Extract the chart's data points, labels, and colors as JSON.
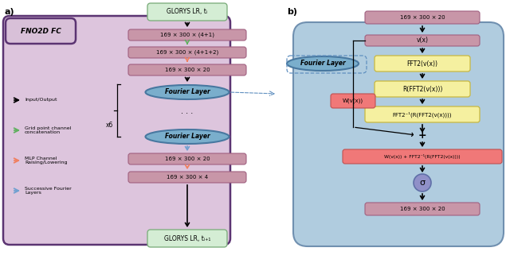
{
  "fig_width": 6.4,
  "fig_height": 3.31,
  "dpi": 100,
  "panel_a_label": "a)",
  "panel_b_label": "b)",
  "fno2d_label": "FNO2D FC",
  "glorys_in_label": "GLORYS LR, tᵢ",
  "glorys_out_label": "GLORYS LR, tᵢ₊₁",
  "box1_label": "169 × 300 × (4+1)",
  "box2_label": "169 × 300 × (4+1+2)",
  "box3_label": "169 × 300 × 20",
  "fourier_layer_label": "Fourier Layer",
  "box4_label": "169 × 300 × 20",
  "box5_label": "169 × 300 × 4",
  "x6_label": "x6",
  "b_top_label": "169 × 300 × 20",
  "b_vx_label": "v(x)",
  "b_fft2_label": "FFT2(v(x))",
  "b_rfft2_label": "R(FFT2(v(x)))",
  "b_ifft2_label": "FFT2⁻¹(R(FFT2(v(x))))",
  "b_sum_label": "W(v(x)) + FFT2⁻¹(R(FFT2(v(x))))",
  "b_sigma_label": "σ",
  "b_wvx_label": "W(v(x))",
  "b_bottom_label": "169 × 300 × 20",
  "color_purple_bg": "#ddc5dd",
  "color_purple_border": "#5b3472",
  "color_blue_bg": "#b0ccdf",
  "color_blue_border": "#7090b0",
  "color_pink_box": "#c896a8",
  "color_yellow_box": "#f5f0a0",
  "color_yellow_border": "#c8b840",
  "color_green_box": "#d4edd4",
  "color_green_border": "#80b080",
  "color_fourier_fill": "#7aaecc",
  "color_fourier_border": "#4878a0",
  "color_sigma_fill": "#9090c8",
  "color_wvx_fill": "#f07878",
  "color_pink_border": "#a06080",
  "legend_arrow_colors": [
    "#000000",
    "#60b060",
    "#f08060",
    "#70a0d0"
  ]
}
